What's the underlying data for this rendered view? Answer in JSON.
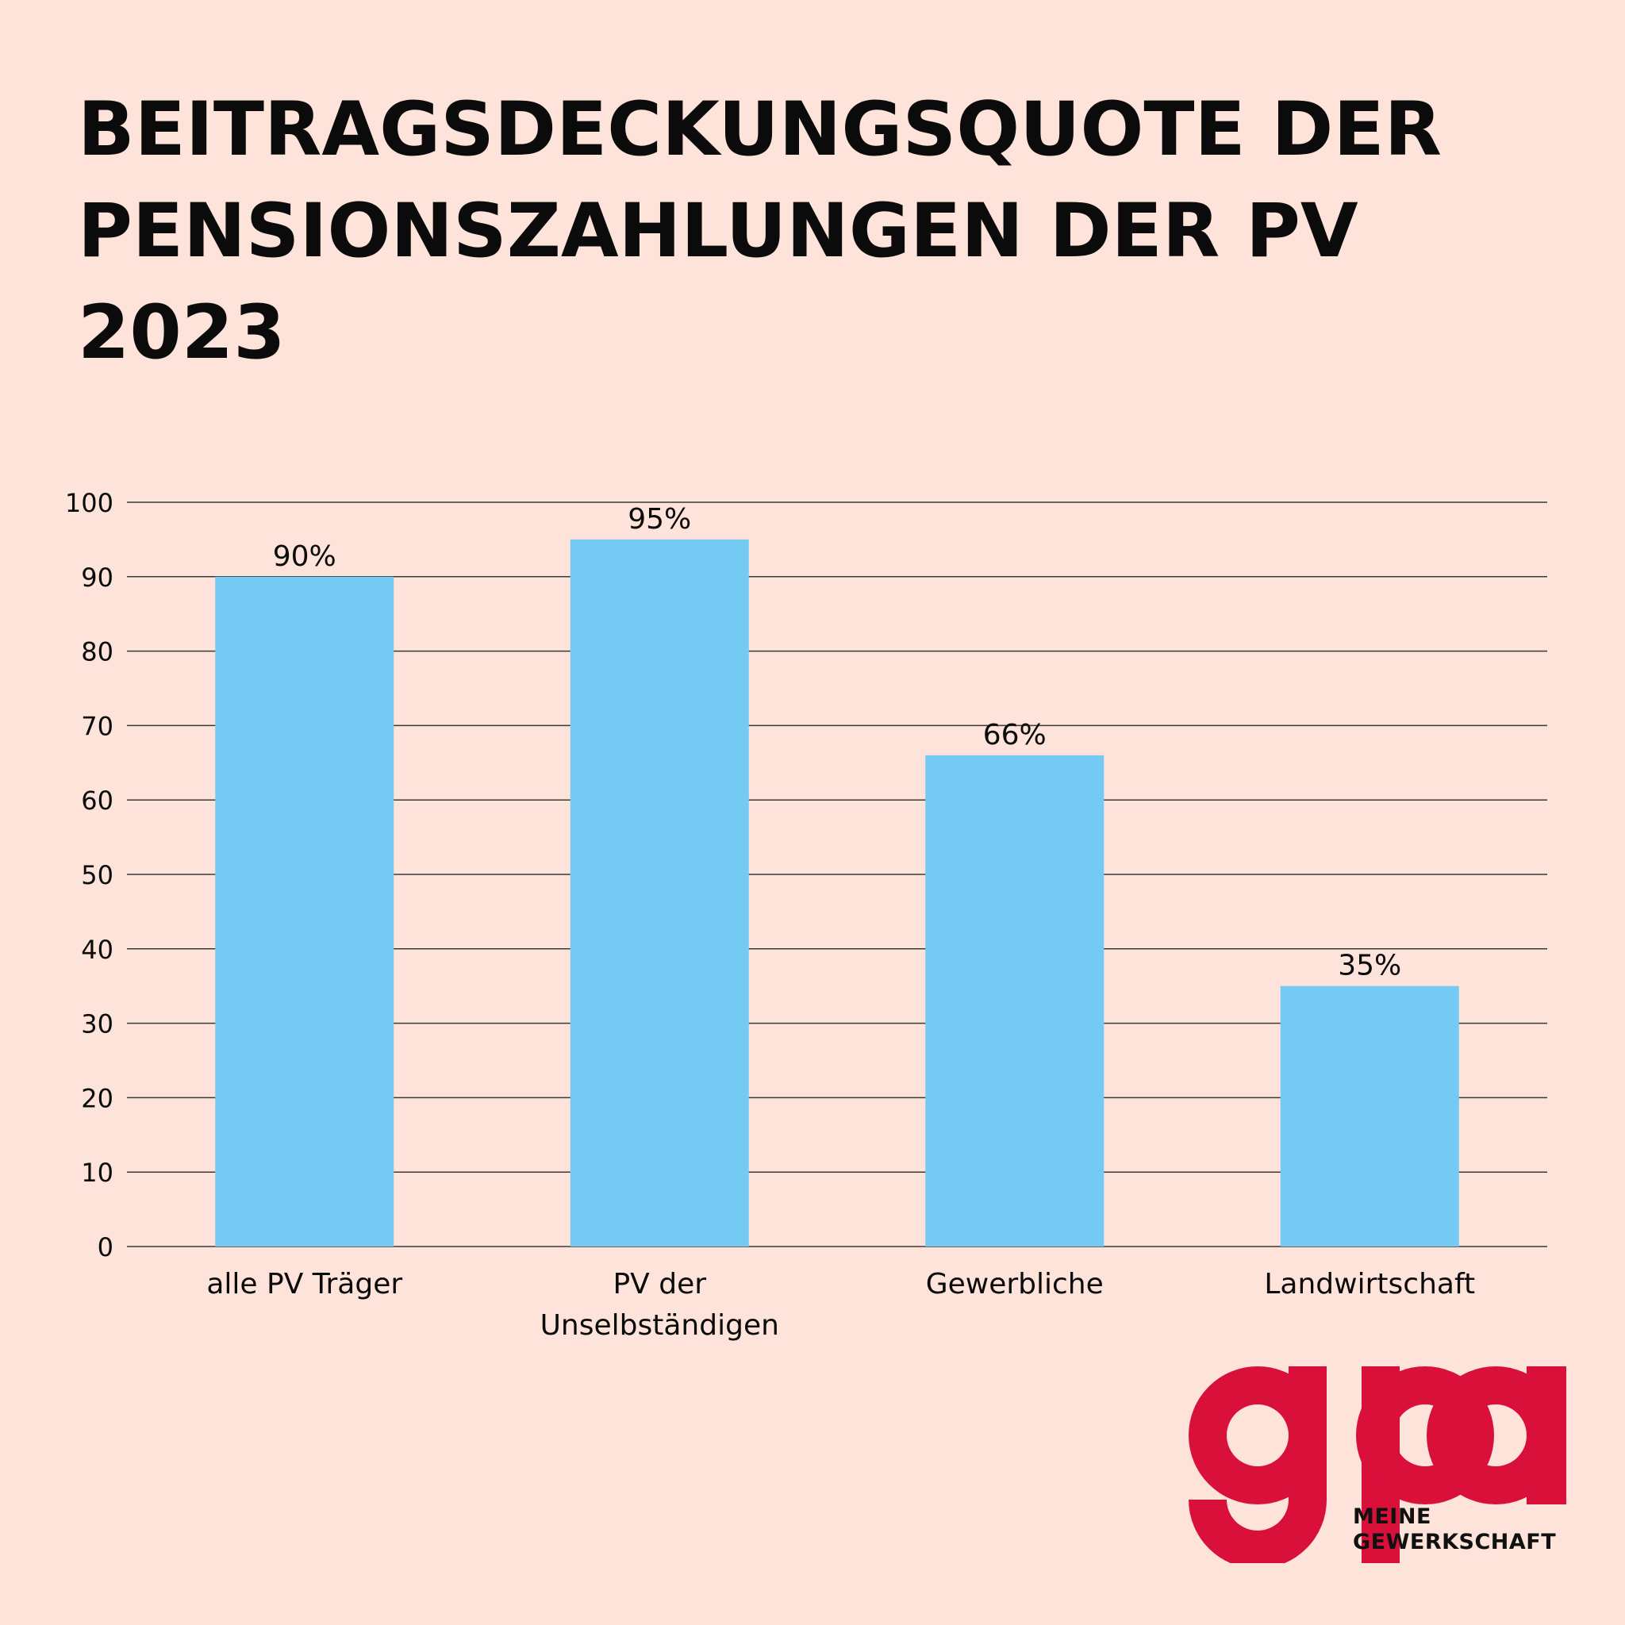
{
  "title_lines": [
    "BEITRAGSDECKUNGSQUOTE DER",
    "PENSIONSZAHLUNGEN DER PV",
    "2023"
  ],
  "colors": {
    "background": "#fde3d9",
    "bar": "#74caf3",
    "text": "#0b0b0b",
    "gridline": "#3a3a3a",
    "logo": "#d8103a"
  },
  "chart_data": {
    "type": "bar",
    "title": "BEITRAGSDECKUNGSQUOTE DER PENSIONSZAHLUNGEN DER PV 2023",
    "categories": [
      [
        "alle PV Träger"
      ],
      [
        "PV der",
        "Unselbständigen"
      ],
      [
        "Gewerbliche"
      ],
      [
        "Landwirtschaft"
      ]
    ],
    "values": [
      90,
      95,
      66,
      35
    ],
    "data_labels": [
      "90%",
      "95%",
      "66%",
      "35%"
    ],
    "ylim": [
      0,
      100
    ],
    "yticks": [
      0,
      10,
      20,
      30,
      40,
      50,
      60,
      70,
      80,
      90,
      100
    ],
    "grid": true,
    "legend": "none",
    "xlabel": "",
    "ylabel": ""
  },
  "logo": {
    "wordmark": "gpa",
    "tagline": [
      "MEINE",
      "GEWERKSCHAFT"
    ]
  }
}
